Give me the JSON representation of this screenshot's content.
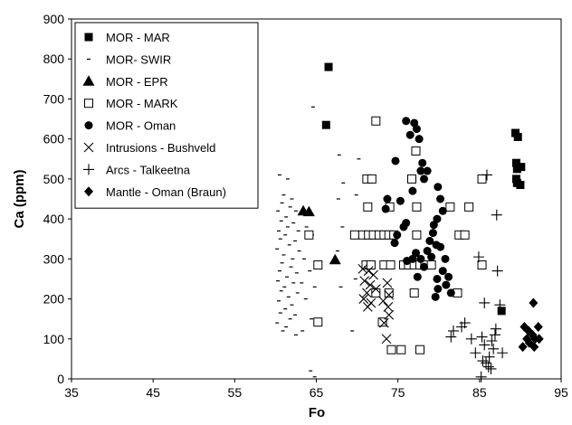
{
  "chart_data": {
    "type": "scatter",
    "xlabel": "Fo",
    "ylabel": "Ca (ppm)",
    "xlim": [
      35,
      95
    ],
    "ylim": [
      0,
      900
    ],
    "xticks": [
      "35",
      "45",
      "55",
      "65",
      "75",
      "85",
      "95"
    ],
    "yticks": [
      "0",
      "100",
      "200",
      "300",
      "400",
      "500",
      "600",
      "700",
      "800",
      "900"
    ],
    "grid": false,
    "legend_position": "top-left",
    "series": [
      {
        "name": "MOR - MAR",
        "marker": "square-filled",
        "points": [
          [
            66.5,
            780
          ],
          [
            66.2,
            635
          ],
          [
            87.7,
            170
          ],
          [
            89.4,
            615
          ],
          [
            89.7,
            605
          ],
          [
            89.5,
            540
          ],
          [
            89.6,
            525
          ],
          [
            90.1,
            530
          ],
          [
            89.5,
            500
          ],
          [
            89.6,
            490
          ],
          [
            90,
            485
          ]
        ]
      },
      {
        "name": "MOR- SWIR",
        "marker": "dash",
        "points": [
          [
            60.5,
            510
          ],
          [
            61.5,
            500
          ],
          [
            61,
            460
          ],
          [
            62,
            450
          ],
          [
            60.8,
            440
          ],
          [
            61.8,
            430
          ],
          [
            60.3,
            420
          ],
          [
            62.5,
            420
          ],
          [
            61.3,
            405
          ],
          [
            60.7,
            395
          ],
          [
            62.2,
            390
          ],
          [
            61.5,
            380
          ],
          [
            60.4,
            370
          ],
          [
            62.8,
            370
          ],
          [
            61.2,
            360
          ],
          [
            60.6,
            350
          ],
          [
            62.4,
            345
          ],
          [
            61.7,
            335
          ],
          [
            60.2,
            325
          ],
          [
            62.9,
            320
          ],
          [
            61,
            310
          ],
          [
            62.1,
            300
          ],
          [
            60.8,
            290
          ],
          [
            61.9,
            280
          ],
          [
            60.5,
            270
          ],
          [
            62.6,
            265
          ],
          [
            61.4,
            255
          ],
          [
            60.3,
            245
          ],
          [
            62.2,
            240
          ],
          [
            61.1,
            230
          ],
          [
            60.7,
            220
          ],
          [
            62.7,
            215
          ],
          [
            61.6,
            205
          ],
          [
            60.4,
            195
          ],
          [
            62,
            185
          ],
          [
            61.2,
            175
          ],
          [
            60.6,
            165
          ],
          [
            62.4,
            160
          ],
          [
            61.8,
            150
          ],
          [
            60.2,
            140
          ],
          [
            61.3,
            130
          ],
          [
            60.9,
            120
          ],
          [
            62.5,
            110
          ],
          [
            63.8,
            380
          ],
          [
            63.5,
            300
          ],
          [
            64.5,
            360
          ],
          [
            64.2,
            270
          ],
          [
            63.7,
            200
          ],
          [
            64.4,
            150
          ],
          [
            63.2,
            240
          ],
          [
            64.8,
            230
          ],
          [
            63.3,
            120
          ],
          [
            64.3,
            20
          ],
          [
            64.8,
            5
          ],
          [
            64.6,
            680
          ],
          [
            67.8,
            560
          ],
          [
            68.3,
            490
          ],
          [
            67.7,
            450
          ],
          [
            68.2,
            380
          ],
          [
            67.6,
            320
          ],
          [
            68,
            230
          ],
          [
            69.7,
            360
          ],
          [
            69.8,
            250
          ],
          [
            69.4,
            120
          ],
          [
            70.2,
            550
          ],
          [
            69.9,
            460
          ]
        ]
      },
      {
        "name": "MOR - EPR",
        "marker": "triangle-filled",
        "points": [
          [
            63.4,
            420
          ],
          [
            64.1,
            418
          ],
          [
            67.3,
            298
          ]
        ]
      },
      {
        "name": "MOR - MARK",
        "marker": "square-open",
        "points": [
          [
            72.3,
            645
          ],
          [
            77.2,
            570
          ],
          [
            71.2,
            500
          ],
          [
            71.8,
            500
          ],
          [
            76.7,
            500
          ],
          [
            85.3,
            500
          ],
          [
            71.3,
            430
          ],
          [
            74,
            430
          ],
          [
            77.3,
            430
          ],
          [
            81.4,
            430
          ],
          [
            83.7,
            430
          ],
          [
            64.1,
            360
          ],
          [
            69.7,
            360
          ],
          [
            70.7,
            360
          ],
          [
            71.4,
            360
          ],
          [
            72,
            360
          ],
          [
            72.7,
            360
          ],
          [
            73.3,
            360
          ],
          [
            73.9,
            360
          ],
          [
            74.5,
            360
          ],
          [
            77.3,
            360
          ],
          [
            82.5,
            360
          ],
          [
            83.2,
            360
          ],
          [
            65.2,
            285
          ],
          [
            71.1,
            285
          ],
          [
            71.7,
            285
          ],
          [
            73.3,
            285
          ],
          [
            74.1,
            285
          ],
          [
            75.7,
            285
          ],
          [
            76.3,
            285
          ],
          [
            77,
            285
          ],
          [
            77.7,
            285
          ],
          [
            78.3,
            285
          ],
          [
            79.1,
            285
          ],
          [
            85.3,
            285
          ],
          [
            72.3,
            215
          ],
          [
            73.9,
            215
          ],
          [
            77,
            215
          ],
          [
            82.3,
            215
          ],
          [
            65.2,
            142
          ],
          [
            73.1,
            142
          ],
          [
            74.2,
            73
          ],
          [
            75.4,
            73
          ],
          [
            77.7,
            73
          ]
        ]
      },
      {
        "name": "MOR - Oman",
        "marker": "circle-filled",
        "points": [
          [
            76,
            645
          ],
          [
            77,
            640
          ],
          [
            76.5,
            610
          ],
          [
            77.6,
            600
          ],
          [
            77.3,
            625
          ],
          [
            74.7,
            545
          ],
          [
            78,
            540
          ],
          [
            77.8,
            520
          ],
          [
            78.6,
            520
          ],
          [
            78.2,
            500
          ],
          [
            79.9,
            480
          ],
          [
            76.8,
            470
          ],
          [
            73.7,
            450
          ],
          [
            75.3,
            445
          ],
          [
            73.5,
            425
          ],
          [
            80.2,
            450
          ],
          [
            80.5,
            420
          ],
          [
            79.8,
            400
          ],
          [
            76,
            390
          ],
          [
            75.7,
            380
          ],
          [
            74.9,
            360
          ],
          [
            74.6,
            340
          ],
          [
            79.4,
            385
          ],
          [
            79.3,
            365
          ],
          [
            78.9,
            345
          ],
          [
            79.7,
            335
          ],
          [
            80.2,
            330
          ],
          [
            78.6,
            320
          ],
          [
            79.1,
            305
          ],
          [
            80.8,
            300
          ],
          [
            77.2,
            315
          ],
          [
            77.8,
            300
          ],
          [
            76.8,
            300
          ],
          [
            76.1,
            295
          ],
          [
            78.2,
            280
          ],
          [
            77.4,
            255
          ],
          [
            80.5,
            270
          ],
          [
            79.8,
            250
          ],
          [
            81.2,
            255
          ],
          [
            80.9,
            235
          ],
          [
            79.9,
            225
          ],
          [
            81.5,
            215
          ],
          [
            79.6,
            205
          ]
        ]
      },
      {
        "name": "Intrusions - Bushveld",
        "marker": "x",
        "points": [
          [
            70.7,
            275
          ],
          [
            71.4,
            270
          ],
          [
            72,
            260
          ],
          [
            70.9,
            245
          ],
          [
            71.6,
            235
          ],
          [
            72.3,
            225
          ],
          [
            71.2,
            215
          ],
          [
            70.8,
            200
          ],
          [
            71.7,
            190
          ],
          [
            71.3,
            180
          ],
          [
            73.7,
            240
          ],
          [
            73.9,
            210
          ],
          [
            73.2,
            195
          ],
          [
            73.8,
            180
          ],
          [
            73.6,
            100
          ],
          [
            73.9,
            160
          ],
          [
            73.3,
            140
          ]
        ]
      },
      {
        "name": "Arcs - Talkeetna",
        "marker": "plus",
        "points": [
          [
            85.9,
            510
          ],
          [
            87.1,
            410
          ],
          [
            87.2,
            270
          ],
          [
            84.9,
            305
          ],
          [
            85.6,
            190
          ],
          [
            87.5,
            185
          ],
          [
            81.8,
            120
          ],
          [
            81.5,
            105
          ],
          [
            82.8,
            130
          ],
          [
            83.2,
            140
          ],
          [
            84,
            100
          ],
          [
            85.3,
            105
          ],
          [
            84.5,
            65
          ],
          [
            85.6,
            85
          ],
          [
            86.5,
            95
          ],
          [
            86.9,
            110
          ],
          [
            87.8,
            65
          ],
          [
            86.2,
            55
          ],
          [
            85.4,
            45
          ],
          [
            85.8,
            40
          ],
          [
            86.1,
            30
          ],
          [
            86.4,
            25
          ],
          [
            85.2,
            5
          ],
          [
            87,
            125
          ],
          [
            86.7,
            75
          ]
        ]
      },
      {
        "name": "Mantle - Oman (Braun)",
        "marker": "diamond-filled",
        "points": [
          [
            90.5,
            130
          ],
          [
            91.6,
            190
          ],
          [
            91,
            120
          ],
          [
            91.5,
            110
          ],
          [
            92.2,
            130
          ],
          [
            92.3,
            100
          ],
          [
            91.8,
            100
          ],
          [
            90.8,
            100
          ],
          [
            91.1,
            90
          ],
          [
            91.7,
            80
          ],
          [
            90.3,
            80
          ]
        ]
      }
    ]
  }
}
